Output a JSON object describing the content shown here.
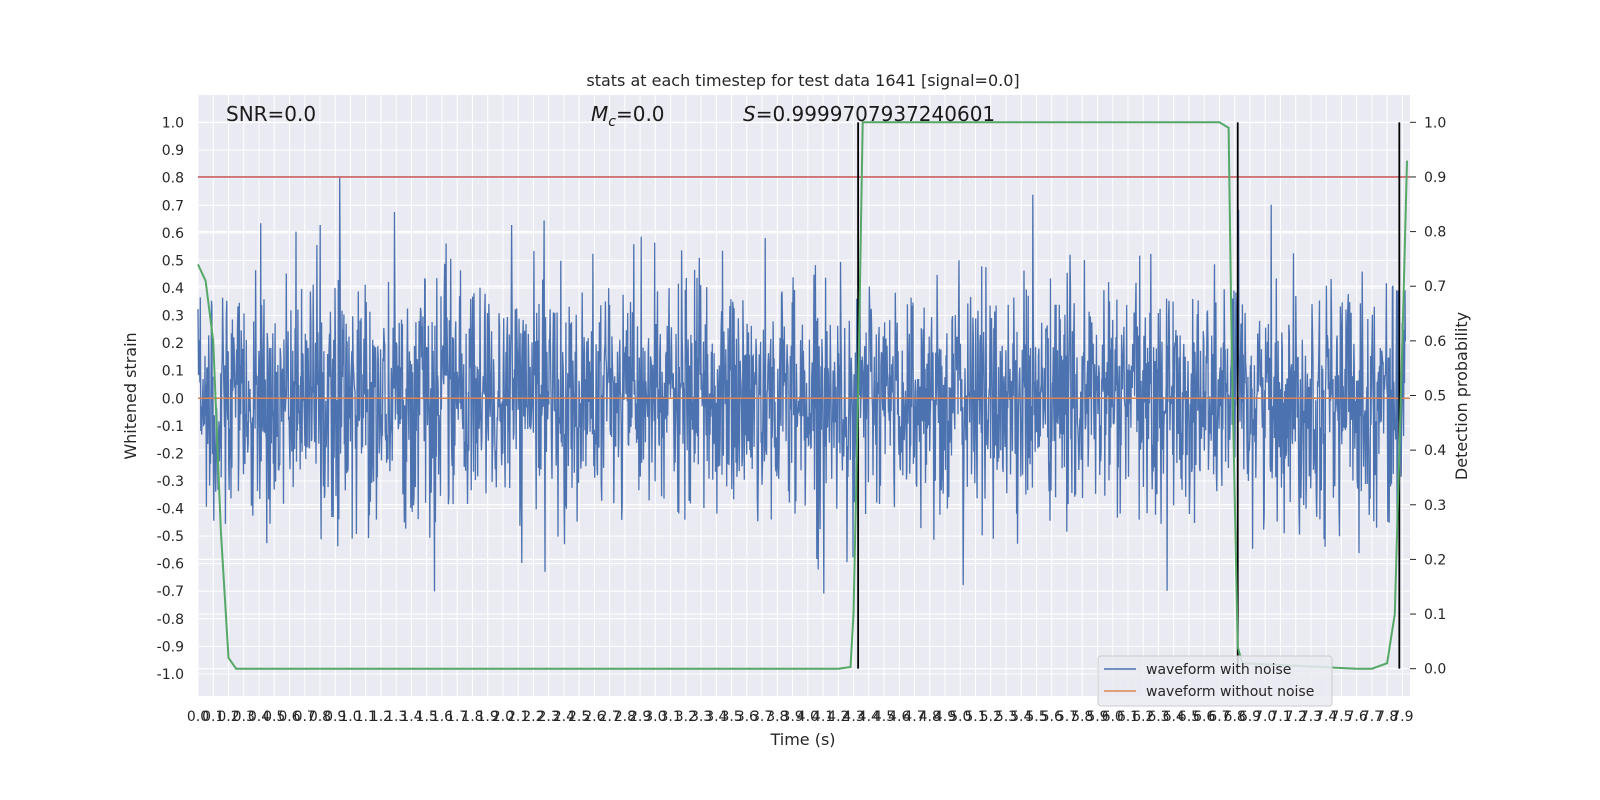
{
  "chart_data": {
    "type": "line",
    "title": "stats at each timestep for test data 1641 [signal=0.0]",
    "xlabel": "Time (s)",
    "ylabel_left": "Whitened strain",
    "ylabel_right": "Detection probability",
    "xlim": [
      0.0,
      7.95
    ],
    "ylim_left": [
      -1.08,
      1.1
    ],
    "ylim_right": [
      -0.05,
      1.05
    ],
    "x_ticks": [
      "0.0",
      "0.1",
      "0.2",
      "0.3",
      "0.4",
      "0.5",
      "0.6",
      "0.7",
      "0.8",
      "0.9",
      "1.0",
      "1.1",
      "1.2",
      "1.3",
      "1.4",
      "1.5",
      "1.6",
      "1.7",
      "1.8",
      "1.9",
      "2.0",
      "2.1",
      "2.2",
      "2.3",
      "2.4",
      "2.5",
      "2.6",
      "2.7",
      "2.8",
      "2.9",
      "3.0",
      "3.1",
      "3.2",
      "3.3",
      "3.4",
      "3.5",
      "3.6",
      "3.7",
      "3.8",
      "3.9",
      "4.0",
      "4.1",
      "4.2",
      "4.3",
      "4.4",
      "4.5",
      "4.6",
      "4.7",
      "4.8",
      "4.9",
      "5.0",
      "5.1",
      "5.2",
      "5.3",
      "5.4",
      "5.5",
      "5.6",
      "5.7",
      "5.8",
      "5.9",
      "6.0",
      "6.1",
      "6.2",
      "6.3",
      "6.4",
      "6.5",
      "6.6",
      "6.7",
      "6.8",
      "6.9",
      "7.0",
      "7.1",
      "7.2",
      "7.3",
      "7.4",
      "7.5",
      "7.6",
      "7.7",
      "7.8",
      "7.9"
    ],
    "y_ticks_left": [
      "-1.0",
      "-0.9",
      "-0.8",
      "-0.7",
      "-0.6",
      "-0.5",
      "-0.4",
      "-0.3",
      "-0.2",
      "-0.1",
      "0.0",
      "0.1",
      "0.2",
      "0.3",
      "0.4",
      "0.5",
      "0.6",
      "0.7",
      "0.8",
      "0.9",
      "1.0"
    ],
    "y_ticks_right": [
      "0.0",
      "0.1",
      "0.2",
      "0.3",
      "0.4",
      "0.5",
      "0.6",
      "0.7",
      "0.8",
      "0.9",
      "1.0"
    ],
    "grid": true,
    "legend_position": "lower-right",
    "series": [
      {
        "name": "waveform with noise",
        "color": "#4c72b0",
        "axis": "left",
        "description_range": [
          -1.0,
          1.0
        ]
      },
      {
        "name": "waveform without noise",
        "color": "#dd8452",
        "axis": "left",
        "constant_value": 0.0
      },
      {
        "axis": "right",
        "color": "#55a868",
        "x": [
          0.0,
          0.05,
          0.1,
          0.15,
          0.2,
          0.25,
          0.3,
          2.0,
          3.4,
          4.2,
          4.28,
          4.3,
          4.33,
          4.36,
          4.45,
          6.7,
          6.76,
          6.78,
          6.82,
          6.85,
          7.6,
          7.7,
          7.8,
          7.85,
          7.9,
          7.93
        ],
        "values": [
          0.74,
          0.71,
          0.6,
          0.25,
          0.02,
          0.0,
          0.0,
          0.0,
          0.0,
          0.0,
          0.003,
          0.1,
          0.5,
          1.0,
          1.0,
          1.0,
          0.99,
          0.6,
          0.04,
          0.01,
          0.0,
          0.0,
          0.01,
          0.1,
          0.6,
          0.93
        ]
      }
    ],
    "threshold_line": {
      "axis": "right",
      "value": 0.9,
      "color": "#c44e52"
    },
    "event_lines": {
      "x": [
        4.33,
        6.82,
        7.88
      ],
      "color": "#000000"
    },
    "annotations": [
      {
        "text": "SNR=0.0"
      },
      {
        "text_main": "M",
        "text_sub": "c",
        "text_rest": "=0.0"
      },
      {
        "text_main": "S",
        "text_rest": "=0.9999707937240601"
      }
    ]
  }
}
